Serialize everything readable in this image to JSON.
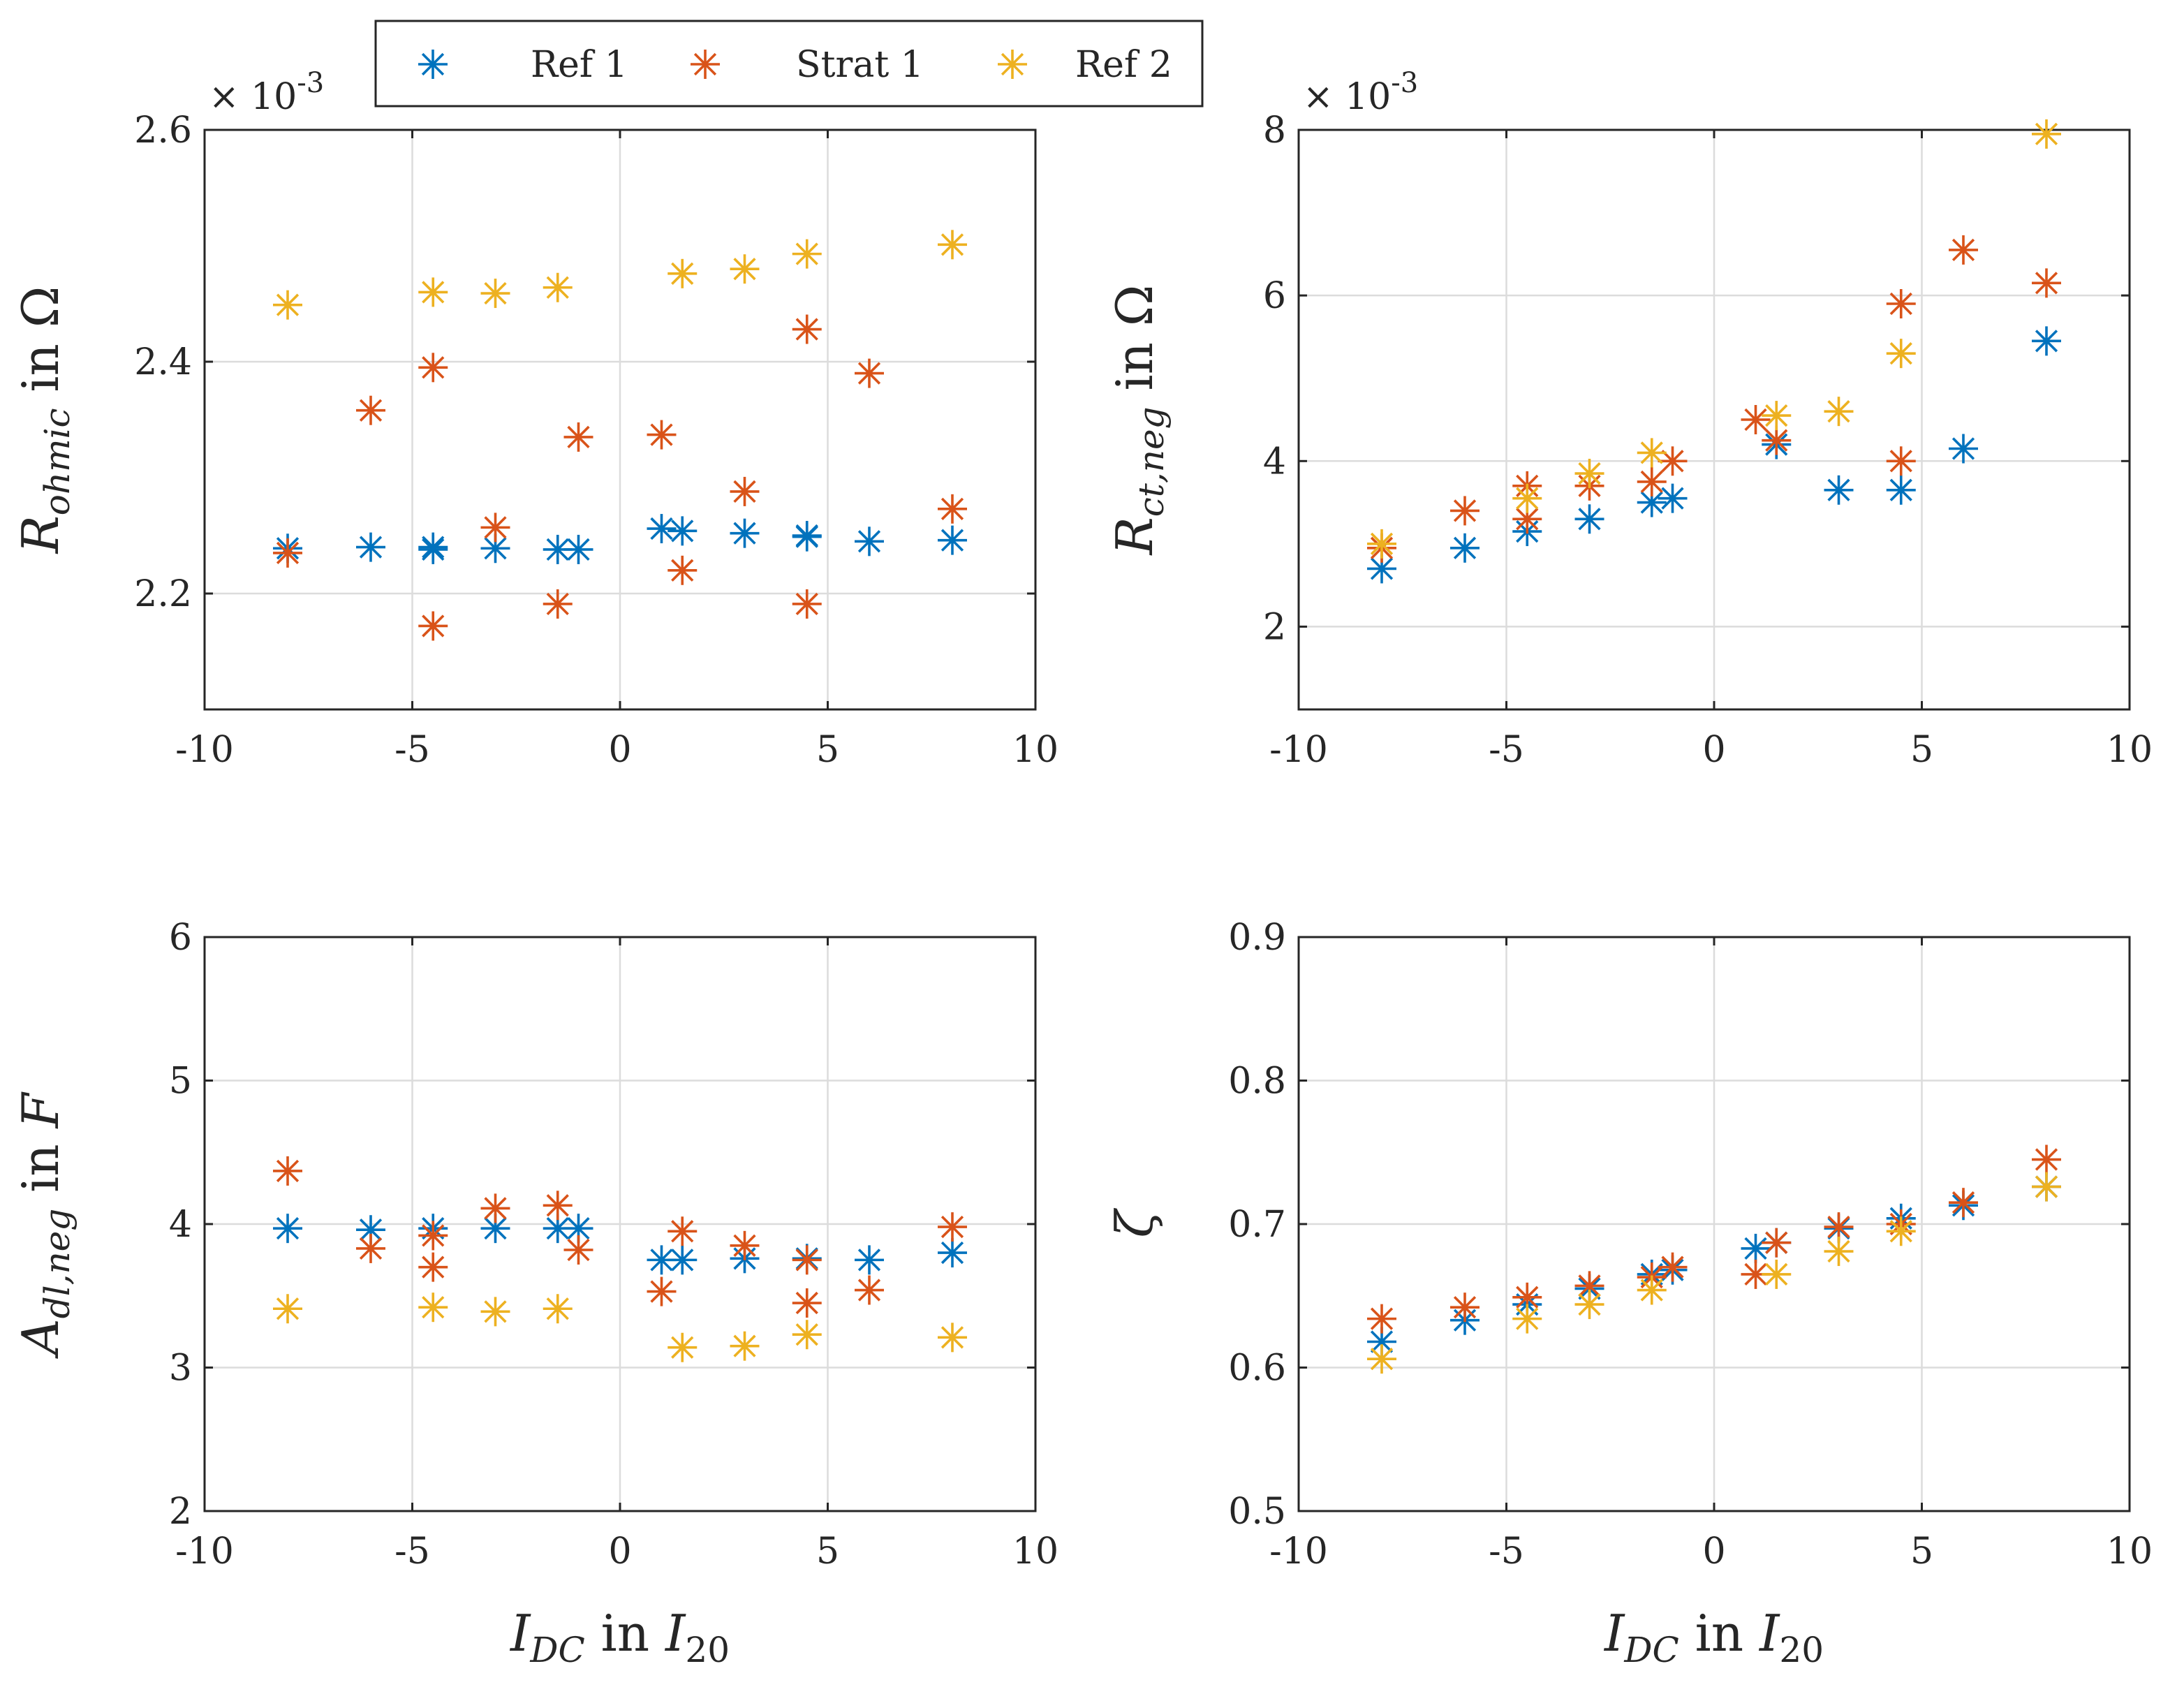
{
  "legend": {
    "entries": [
      {
        "name": "Ref 1",
        "color": "#0072BD"
      },
      {
        "name": "Strat 1",
        "color": "#D95319"
      },
      {
        "name": "Ref 2",
        "color": "#EDB120"
      }
    ]
  },
  "chart_data": [
    {
      "type": "scatter",
      "id": "ohmic",
      "ylabel_main": "R",
      "ylabel_sub": "ohmic",
      "ylabel_rest": " in Ω",
      "xlabel": "",
      "xlim": [
        -10,
        10
      ],
      "ylim": [
        2.1,
        2.6
      ],
      "xticks": [
        -10,
        -5,
        0,
        5,
        10
      ],
      "yticks": [
        2.2,
        2.4,
        2.6
      ],
      "xtick_labels": [
        "-10",
        "-5",
        "0",
        "5",
        "10"
      ],
      "ytick_labels": [
        "2.2",
        "2.4",
        "2.6"
      ],
      "scale_base": "× 10",
      "scale_exp": "-3",
      "series": [
        {
          "name": "Ref 1",
          "x": [
            -8,
            -6,
            -4.5,
            -4.5,
            -3,
            -1.5,
            -1,
            1,
            1.5,
            3,
            4.5,
            4.5,
            6,
            8
          ],
          "y": [
            2.239,
            2.24,
            2.24,
            2.238,
            2.239,
            2.238,
            2.238,
            2.256,
            2.254,
            2.252,
            2.25,
            2.249,
            2.245,
            2.246
          ]
        },
        {
          "name": "Strat 1",
          "x": [
            -8,
            -6,
            -4.5,
            -4.5,
            -3,
            -1.5,
            -1,
            1,
            1.5,
            3,
            4.5,
            4.5,
            6,
            8
          ],
          "y": [
            2.235,
            2.358,
            2.395,
            2.172,
            2.257,
            2.191,
            2.335,
            2.337,
            2.22,
            2.288,
            2.428,
            2.191,
            2.39,
            2.273
          ]
        },
        {
          "name": "Ref 2",
          "x": [
            -8,
            -4.5,
            -3,
            -1.5,
            1.5,
            3,
            4.5,
            8
          ],
          "y": [
            2.449,
            2.46,
            2.459,
            2.464,
            2.476,
            2.48,
            2.493,
            2.501
          ]
        }
      ]
    },
    {
      "type": "scatter",
      "id": "ctneg",
      "ylabel_main": "R",
      "ylabel_sub": "ct,neg",
      "ylabel_rest": " in Ω",
      "xlabel": "",
      "xlim": [
        -10,
        10
      ],
      "ylim": [
        1,
        8
      ],
      "xticks": [
        -10,
        -5,
        0,
        5,
        10
      ],
      "yticks": [
        2,
        4,
        6,
        8
      ],
      "xtick_labels": [
        "-10",
        "-5",
        "0",
        "5",
        "10"
      ],
      "ytick_labels": [
        "2",
        "4",
        "6",
        "8"
      ],
      "scale_base": "× 10",
      "scale_exp": "-3",
      "series": [
        {
          "name": "Ref 1",
          "x": [
            -8,
            -6,
            -4.5,
            -3,
            -1.5,
            -1,
            1.5,
            3,
            4.5,
            6,
            8
          ],
          "y": [
            2.7,
            2.95,
            3.15,
            3.3,
            3.5,
            3.55,
            4.2,
            3.65,
            3.65,
            4.15,
            5.45
          ]
        },
        {
          "name": "Strat 1",
          "x": [
            -8,
            -6,
            -4.5,
            -4.5,
            -3,
            -1.5,
            -1,
            1,
            1.5,
            4.5,
            4.5,
            6,
            8
          ],
          "y": [
            2.95,
            3.4,
            3.7,
            3.3,
            3.7,
            3.75,
            4.0,
            4.5,
            4.25,
            4.0,
            5.9,
            6.55,
            6.15
          ]
        },
        {
          "name": "Ref 2",
          "x": [
            -8,
            -4.5,
            -3,
            -1.5,
            1.5,
            3,
            4.5,
            8
          ],
          "y": [
            3.0,
            3.55,
            3.85,
            4.1,
            4.55,
            4.6,
            5.3,
            7.95
          ]
        }
      ]
    },
    {
      "type": "scatter",
      "id": "adl",
      "ylabel_main": "A",
      "ylabel_sub": "dl,neg",
      "ylabel_rest": " in ",
      "ylabel_unit": "F",
      "xlabel_main": "I",
      "xlabel_sub": "DC",
      "xlabel_mid": " in ",
      "xlabel_main2": "I",
      "xlabel_sub2": "20",
      "xlim": [
        -10,
        10
      ],
      "ylim": [
        2,
        6
      ],
      "xticks": [
        -10,
        -5,
        0,
        5,
        10
      ],
      "yticks": [
        2,
        3,
        4,
        5,
        6
      ],
      "xtick_labels": [
        "-10",
        "-5",
        "0",
        "5",
        "10"
      ],
      "ytick_labels": [
        "2",
        "3",
        "4",
        "5",
        "6"
      ],
      "series": [
        {
          "name": "Ref 1",
          "x": [
            -8,
            -6,
            -4.5,
            -3,
            -1.5,
            -1,
            1,
            1.5,
            3,
            4.5,
            6,
            8
          ],
          "y": [
            3.97,
            3.96,
            3.97,
            3.97,
            3.97,
            3.97,
            3.75,
            3.75,
            3.76,
            3.76,
            3.75,
            3.8
          ]
        },
        {
          "name": "Strat 1",
          "x": [
            -8,
            -6,
            -4.5,
            -4.5,
            -3,
            -1.5,
            -1,
            1,
            1.5,
            3,
            4.5,
            4.5,
            6,
            8
          ],
          "y": [
            4.37,
            3.83,
            3.92,
            3.7,
            4.11,
            4.13,
            3.82,
            3.53,
            3.95,
            3.85,
            3.75,
            3.45,
            3.54,
            3.98
          ]
        },
        {
          "name": "Ref 2",
          "x": [
            -8,
            -4.5,
            -3,
            -1.5,
            1.5,
            3,
            4.5,
            8
          ],
          "y": [
            3.41,
            3.42,
            3.39,
            3.41,
            3.14,
            3.15,
            3.23,
            3.21
          ]
        }
      ]
    },
    {
      "type": "scatter",
      "id": "zeta",
      "ylabel_main": "ζ",
      "xlabel_main": "I",
      "xlabel_sub": "DC",
      "xlabel_mid": " in ",
      "xlabel_main2": "I",
      "xlabel_sub2": "20",
      "xlim": [
        -10,
        10
      ],
      "ylim": [
        0.5,
        0.9
      ],
      "xticks": [
        -10,
        -5,
        0,
        5,
        10
      ],
      "yticks": [
        0.5,
        0.6,
        0.7,
        0.8,
        0.9
      ],
      "xtick_labels": [
        "-10",
        "-5",
        "0",
        "5",
        "10"
      ],
      "ytick_labels": [
        "0.5",
        "0.6",
        "0.7",
        "0.8",
        "0.9"
      ],
      "series": [
        {
          "name": "Ref 1",
          "x": [
            -8,
            -6,
            -4.5,
            -3,
            -1.5,
            -1,
            1,
            1.5,
            3,
            4.5,
            6,
            8
          ],
          "y": [
            0.618,
            0.633,
            0.644,
            0.655,
            0.665,
            0.668,
            0.683,
            0.687,
            0.697,
            0.704,
            0.713,
            0.726
          ]
        },
        {
          "name": "Strat 1",
          "x": [
            -8,
            -6,
            -4.5,
            -3,
            -1.5,
            -1,
            1,
            1.5,
            3,
            4.5,
            6,
            8
          ],
          "y": [
            0.634,
            0.642,
            0.649,
            0.657,
            0.663,
            0.67,
            0.665,
            0.687,
            0.698,
            0.7,
            0.715,
            0.745
          ]
        },
        {
          "name": "Ref 2",
          "x": [
            -8,
            -4.5,
            -3,
            -1.5,
            1.5,
            3,
            4.5,
            8
          ],
          "y": [
            0.606,
            0.634,
            0.644,
            0.654,
            0.665,
            0.681,
            0.695,
            0.726
          ]
        }
      ]
    }
  ]
}
